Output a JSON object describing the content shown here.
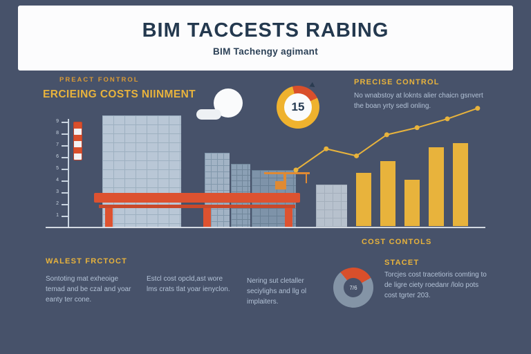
{
  "colors": {
    "background": "#47526a",
    "accent_yellow": "#e8b33c",
    "accent_orange": "#dd5230",
    "body_text": "#b3c2d6",
    "title_text": "#24394f",
    "card_white": "#fcfcfd"
  },
  "header": {
    "title": "BIM TACCESTS RABING",
    "subtitle": "BIM Tachengy agimant"
  },
  "left_section": {
    "kicker": "PREACT FONTROL",
    "heading": "ERCIEING COSTS NIINMENT"
  },
  "precise_control": {
    "heading": "PRECISE CONTROL",
    "body": "No wnabstoy at loknts alier chaicn gsnvert the boan yrty sedl onling."
  },
  "bottom_section": {
    "left_heading": "WALEST FRCTOCT",
    "columns": [
      "Sontoting mat exheoige temad and be czal and yoar eanty ter cone.",
      "Estcl cost opcld,ast wore lms crats tlat yoar ienyclon.",
      "Nering sut cletaller seciylighs and llg ol implaiters."
    ],
    "cost_heading": "COST CONTOLS",
    "stacet_heading": "STACET",
    "stacet_body": "Torcjes cost tracetioris comting to de ligre ciety roedanr /lolo pots cost tgrter 203."
  },
  "illustration": {
    "ruler_labels": [
      "9",
      "8",
      "7",
      "6",
      "5",
      "4",
      "3",
      "2",
      "1"
    ],
    "elements": [
      "ruler",
      "measuring-rod",
      "city-buildings",
      "construction-crane",
      "orange-gate",
      "clouds",
      "ground-line"
    ]
  },
  "chart_data": [
    {
      "id": "cycle-gauge",
      "type": "donut",
      "center_label": "15",
      "start_angle_deg": -15,
      "legend": "none",
      "slices": [
        {
          "name": "highlight",
          "value": 22,
          "color": "#d94f2b"
        },
        {
          "name": "base",
          "value": 78,
          "color": "#efb22e"
        }
      ]
    },
    {
      "id": "trend-line",
      "type": "line",
      "x": [
        1,
        2,
        3,
        4,
        5,
        6,
        7
      ],
      "values": [
        33,
        45,
        41,
        53,
        57,
        62,
        68
      ],
      "color": "#e8b33c",
      "grid": false,
      "legend": "none"
    },
    {
      "id": "cost-bars",
      "type": "bar",
      "categories": [
        "b1",
        "b2",
        "b3",
        "b4",
        "b5"
      ],
      "values": [
        62,
        75,
        54,
        91,
        96
      ],
      "ylim": [
        0,
        100
      ],
      "color": "#e8b33c",
      "grid": false,
      "legend": "none"
    },
    {
      "id": "cost-donut",
      "type": "pie",
      "center_label": "7/6",
      "start_angle_deg": -40,
      "legend": "none",
      "slices": [
        {
          "name": "segment-a",
          "value": 28,
          "color": "#d94f2b"
        },
        {
          "name": "segment-b",
          "value": 72,
          "color": "#8494a6"
        }
      ]
    }
  ]
}
